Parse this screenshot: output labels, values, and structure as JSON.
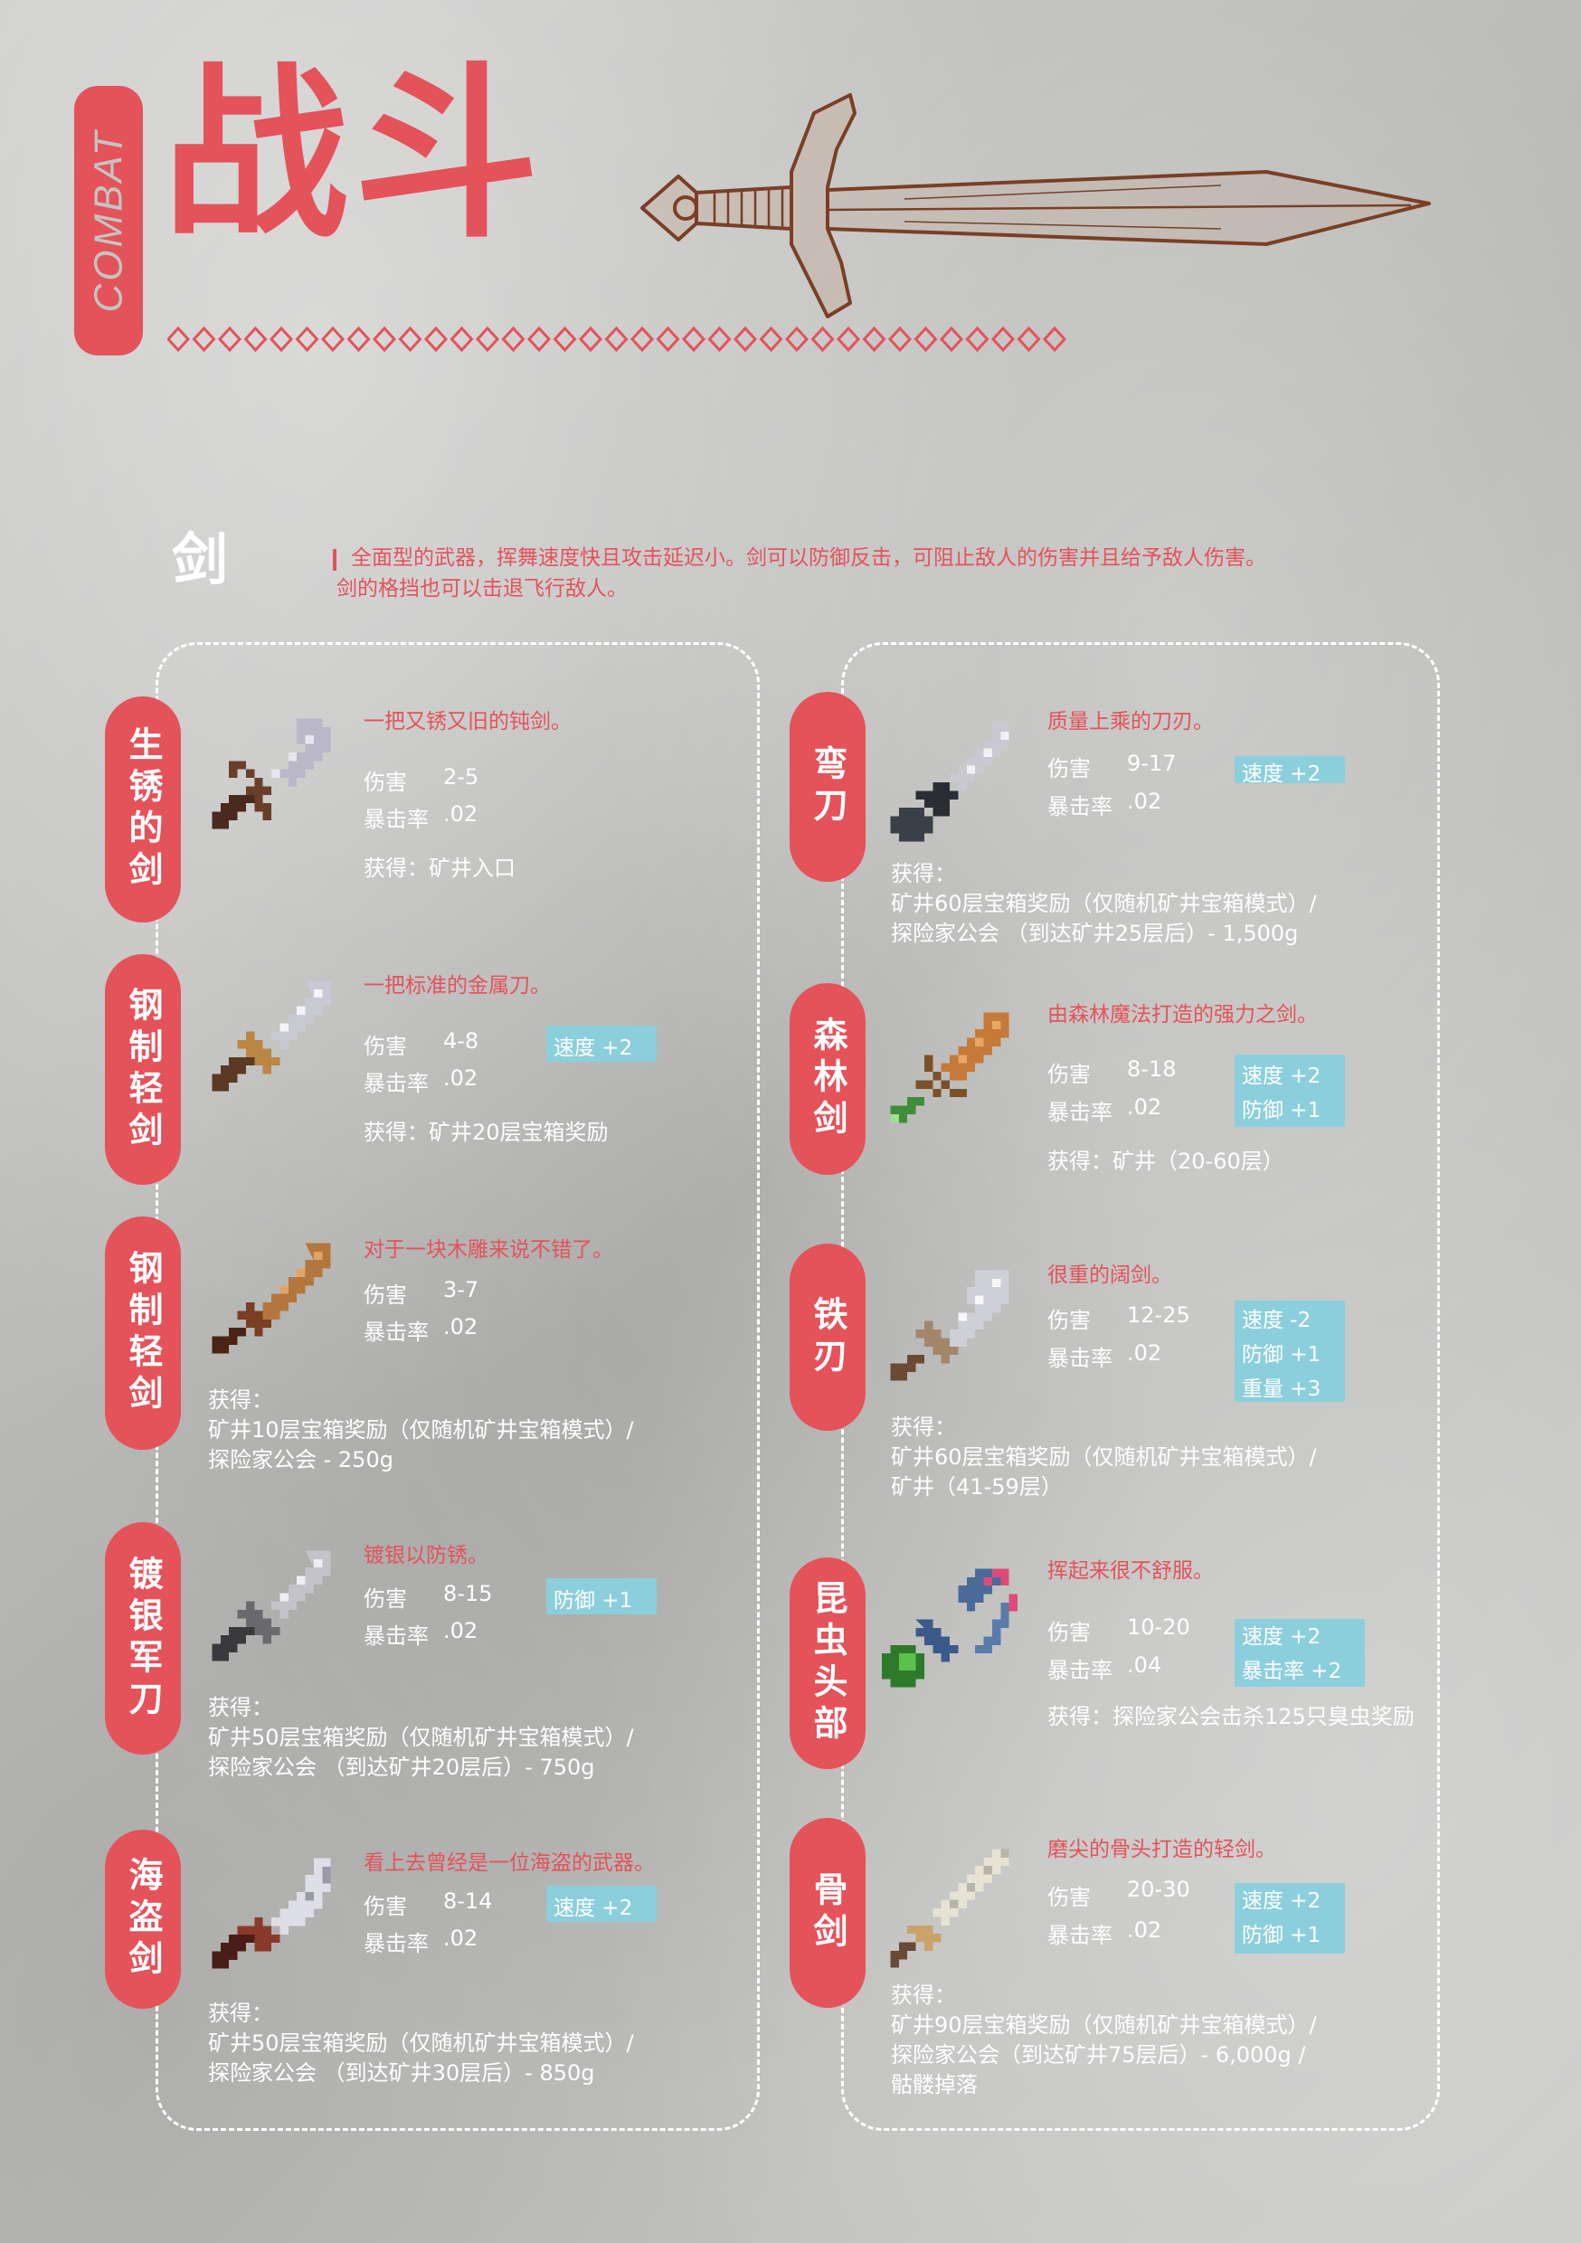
{
  "header": {
    "tag": "COMBAT",
    "title": "战斗"
  },
  "colors": {
    "accent": "#e4525a",
    "badge": "#8ccfdc",
    "background": "#c4c4c2",
    "text": "#ffffff"
  },
  "section": {
    "title": "剑",
    "description_line1": "全面型的武器，挥舞速度快且攻击延迟小。剑可以防御反击，可阻止敌人的伤害并且给予敌人伤害。",
    "description_line2": "剑的格挡也可以击退飞行敌人。"
  },
  "labels": {
    "damage": "伤害",
    "crit": "暴击率"
  },
  "left_items": [
    {
      "name": "生锈的剑",
      "icon": "rusty-sword-icon",
      "description": "一把又锈又旧的钝剑。",
      "damage": "2-5",
      "crit": ".02",
      "bonuses": [],
      "obtain": [
        "获得：矿井入口"
      ]
    },
    {
      "name": "钢制轻剑",
      "icon": "steel-smallsword-icon",
      "description": "一把标准的金属刀。",
      "damage": "4-8",
      "crit": ".02",
      "bonuses": [
        "速度 +2"
      ],
      "obtain": [
        "获得：矿井20层宝箱奖励"
      ]
    },
    {
      "name": "钢制轻剑",
      "icon": "wooden-blade-icon",
      "description": "对于一块木雕来说不错了。",
      "damage": "3-7",
      "crit": ".02",
      "bonuses": [],
      "obtain": [
        "获得：",
        "矿井10层宝箱奖励（仅随机矿井宝箱模式）/",
        "探险家公会 - 250g"
      ]
    },
    {
      "name": "镀银军刀",
      "icon": "silver-saber-icon",
      "description": "镀银以防锈。",
      "damage": "8-15",
      "crit": ".02",
      "bonuses": [
        "防御 +1"
      ],
      "obtain": [
        "获得：",
        "矿井50层宝箱奖励（仅随机矿井宝箱模式）/",
        "探险家公会 （到达矿井20层后）- 750g"
      ]
    },
    {
      "name": "海盗剑",
      "icon": "pirate-sword-icon",
      "description": "看上去曾经是一位海盗的武器。",
      "damage": "8-14",
      "crit": ".02",
      "bonuses": [
        "速度 +2"
      ],
      "obtain": [
        "获得：",
        "矿井50层宝箱奖励（仅随机矿井宝箱模式）/",
        "探险家公会 （到达矿井30层后）- 850g"
      ]
    }
  ],
  "right_items": [
    {
      "name": "弯刀",
      "icon": "cutlass-icon",
      "description": "质量上乘的刀刃。",
      "damage": "9-17",
      "crit": ".02",
      "bonuses": [
        "速度 +2"
      ],
      "obtain": [
        "获得：",
        "矿井60层宝箱奖励（仅随机矿井宝箱模式）/",
        "探险家公会 （到达矿井25层后）- 1,500g"
      ]
    },
    {
      "name": "森林剑",
      "icon": "forest-sword-icon",
      "description": "由森林魔法打造的强力之剑。",
      "damage": "8-18",
      "crit": ".02",
      "bonuses": [
        "速度 +2",
        "防御 +1"
      ],
      "obtain": [
        "获得：矿井（20-60层）"
      ]
    },
    {
      "name": "铁刃",
      "icon": "iron-edge-icon",
      "description": "很重的阔剑。",
      "damage": "12-25",
      "crit": ".02",
      "bonuses": [
        "速度 -2",
        "防御 +1",
        "重量 +3"
      ],
      "obtain": [
        "获得：",
        "矿井60层宝箱奖励（仅随机矿井宝箱模式）/",
        "矿井（41-59层）"
      ]
    },
    {
      "name": "昆虫头部",
      "icon": "insect-head-icon",
      "description": "挥起来很不舒服。",
      "damage": "10-20",
      "crit": ".04",
      "bonuses": [
        "速度 +2",
        "暴击率 +2"
      ],
      "obtain": [
        "获得：探险家公会击杀125只臭虫奖励"
      ]
    },
    {
      "name": "骨剑",
      "icon": "bone-sword-icon",
      "description": "磨尖的骨头打造的轻剑。",
      "damage": "20-30",
      "crit": ".02",
      "bonuses": [
        "速度 +2",
        "防御 +1"
      ],
      "obtain": [
        "获得：",
        "矿井90层宝箱奖励（仅随机矿井宝箱模式）/",
        "探险家公会（到达矿井75层后）- 6,000g /",
        "骷髅掉落"
      ]
    }
  ]
}
